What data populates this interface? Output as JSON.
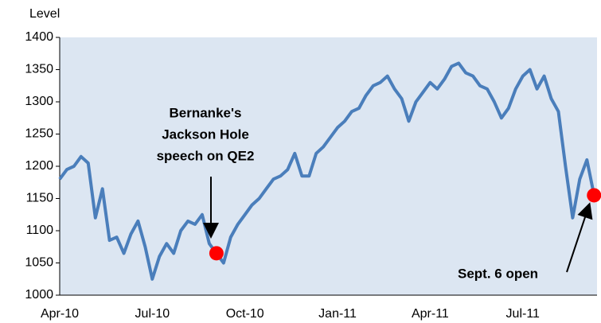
{
  "chart_data": {
    "type": "line",
    "y_label": "Level",
    "categories": [
      "Apr-10",
      null,
      null,
      null,
      null,
      null,
      null,
      null,
      null,
      null,
      null,
      null,
      null,
      "Jul-10",
      null,
      null,
      null,
      null,
      null,
      null,
      null,
      null,
      null,
      null,
      null,
      null,
      "Oct-10",
      null,
      null,
      null,
      null,
      null,
      null,
      null,
      null,
      null,
      null,
      null,
      null,
      "Jan-11",
      null,
      null,
      null,
      null,
      null,
      null,
      null,
      null,
      null,
      null,
      null,
      null,
      "Apr-11",
      null,
      null,
      null,
      null,
      null,
      null,
      null,
      null,
      null,
      null,
      null,
      null,
      "Jul-11",
      null,
      null,
      null,
      null,
      null,
      null,
      null,
      null,
      null,
      null
    ],
    "series": [
      {
        "name": "Level",
        "color": "#4a7ebb",
        "values": [
          1180,
          1195,
          1200,
          1215,
          1205,
          1120,
          1165,
          1085,
          1090,
          1065,
          1095,
          1115,
          1075,
          1025,
          1060,
          1080,
          1065,
          1100,
          1115,
          1110,
          1125,
          1080,
          1065,
          1050,
          1090,
          1110,
          1125,
          1140,
          1150,
          1165,
          1180,
          1185,
          1195,
          1220,
          1185,
          1185,
          1220,
          1230,
          1245,
          1260,
          1270,
          1285,
          1290,
          1310,
          1325,
          1330,
          1340,
          1320,
          1305,
          1270,
          1300,
          1315,
          1330,
          1320,
          1335,
          1355,
          1360,
          1345,
          1340,
          1325,
          1320,
          1300,
          1275,
          1290,
          1320,
          1340,
          1350,
          1320,
          1340,
          1305,
          1285,
          1200,
          1120,
          1180,
          1210,
          1155
        ]
      }
    ],
    "ylim": [
      1000,
      1400
    ],
    "yticks": [
      1000,
      1050,
      1100,
      1150,
      1200,
      1250,
      1300,
      1350,
      1400
    ],
    "annotations": [
      {
        "lines": [
          "Bernanke's",
          "Jackson Hole",
          "speech on QE2"
        ]
      },
      {
        "lines": [
          "Sept. 6 open"
        ]
      }
    ],
    "highlight_color": "#ff0000",
    "background": "#dce6f2"
  }
}
